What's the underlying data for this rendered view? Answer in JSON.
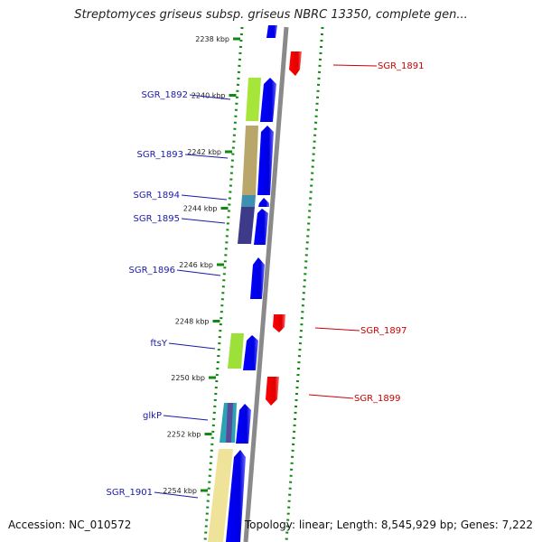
{
  "title": "Streptomyces griseus subsp. griseus NBRC 13350, complete gen...",
  "accession": "Accession: NC_010572",
  "summary": "Topology: linear; Length: 8,545,929 bp; Genes: 7,222",
  "positions": [
    {
      "label": "2238 kbp",
      "kbp": 2238
    },
    {
      "label": "2240 kbp",
      "kbp": 2240
    },
    {
      "label": "2242 kbp",
      "kbp": 2242
    },
    {
      "label": "2244 kbp",
      "kbp": 2244
    },
    {
      "label": "2246 kbp",
      "kbp": 2246
    },
    {
      "label": "2248 kbp",
      "kbp": 2248
    },
    {
      "label": "2250 kbp",
      "kbp": 2250
    },
    {
      "label": "2252 kbp",
      "kbp": 2252
    },
    {
      "label": "2254 kbp",
      "kbp": 2254
    }
  ],
  "genes_left": [
    {
      "name": "SGR_1892",
      "color": "#1a1aa8"
    },
    {
      "name": "SGR_1893",
      "color": "#1a1aa8"
    },
    {
      "name": "SGR_1894",
      "color": "#1a1aa8"
    },
    {
      "name": "SGR_1895",
      "color": "#1a1aa8"
    },
    {
      "name": "SGR_1896",
      "color": "#1a1aa8"
    },
    {
      "name": "ftsY",
      "color": "#1a1aa8"
    },
    {
      "name": "glkP",
      "color": "#1a1aa8"
    },
    {
      "name": "SGR_1901",
      "color": "#1a1aa8"
    }
  ],
  "genes_right": [
    {
      "name": "SGR_1891",
      "color": "#cc0000"
    },
    {
      "name": "SGR_1897",
      "color": "#cc0000"
    },
    {
      "name": "SGR_1899",
      "color": "#cc0000"
    }
  ],
  "colors": {
    "forward_strand": "#0000ee",
    "reverse_strand": "#ee0000",
    "backbone": "#909090",
    "tick_dots": "#118811",
    "forward_label": "#1a1aa8",
    "reverse_label": "#cc0000"
  }
}
